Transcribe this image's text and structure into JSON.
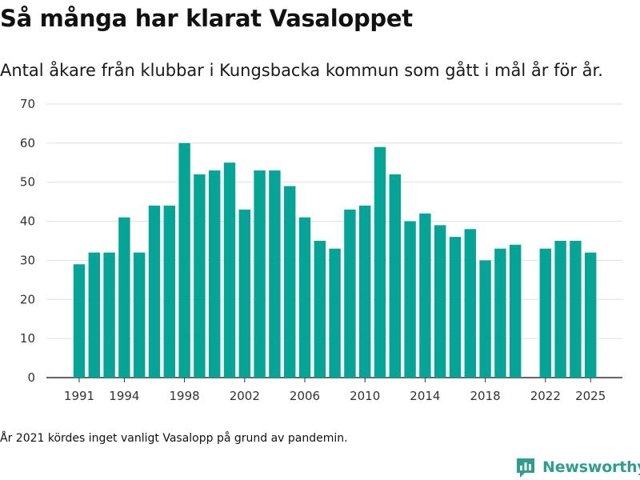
{
  "title": "Så många har klarat Vasaloppet",
  "subtitle": "Antal åkare från klubbar i Kungsbacka kommun som gått i mål år för år.",
  "note": "År 2021 kördes inget vanligt Vasalopp på grund av pandemin.",
  "brand": {
    "name": "Newsworthy",
    "icon": "newsworthy-logo-icon"
  },
  "colors": {
    "bar": "#04a597",
    "grid": "#e0e0e0",
    "axis": "#333333",
    "brand": "#2e9e8e"
  },
  "chart_data": {
    "type": "bar",
    "title": "Så många har klarat Vasaloppet",
    "xlabel": "",
    "ylabel": "",
    "ylim": [
      0,
      70
    ],
    "yticks": [
      0,
      10,
      20,
      30,
      40,
      50,
      60,
      70
    ],
    "xticks": [
      1991,
      1994,
      1998,
      2002,
      2006,
      2010,
      2014,
      2018,
      2022,
      2025
    ],
    "categories": [
      1991,
      1992,
      1993,
      1994,
      1995,
      1996,
      1997,
      1998,
      1999,
      2000,
      2001,
      2002,
      2003,
      2004,
      2005,
      2006,
      2007,
      2008,
      2009,
      2010,
      2011,
      2012,
      2013,
      2014,
      2015,
      2016,
      2017,
      2018,
      2019,
      2020,
      2021,
      2022,
      2023,
      2024,
      2025
    ],
    "values": [
      29,
      32,
      32,
      41,
      32,
      44,
      44,
      60,
      52,
      53,
      55,
      43,
      53,
      53,
      49,
      41,
      35,
      33,
      43,
      44,
      59,
      52,
      40,
      42,
      39,
      36,
      38,
      30,
      33,
      34,
      null,
      33,
      35,
      35,
      32
    ]
  }
}
